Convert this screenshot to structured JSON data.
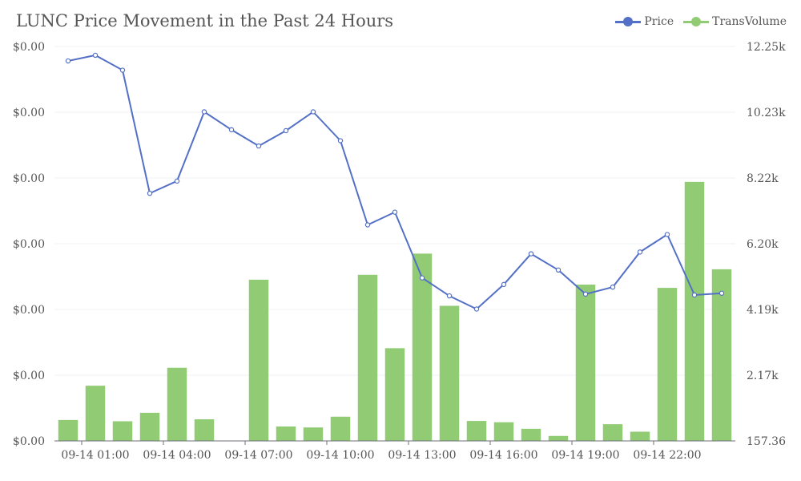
{
  "chart_data": {
    "type": "bar",
    "title": "LUNC Price Movement in the Past 24 Hours",
    "legend_position": "top-right",
    "grid": true,
    "x": [
      "09-14 00:00",
      "09-14 01:00",
      "09-14 02:00",
      "09-14 03:00",
      "09-14 04:00",
      "09-14 05:00",
      "09-14 06:00",
      "09-14 07:00",
      "09-14 08:00",
      "09-14 09:00",
      "09-14 10:00",
      "09-14 11:00",
      "09-14 12:00",
      "09-14 13:00",
      "09-14 14:00",
      "09-14 15:00",
      "09-14 16:00",
      "09-14 17:00",
      "09-14 18:00",
      "09-14 19:00",
      "09-14 20:00",
      "09-14 21:00",
      "09-14 22:00",
      "09-14 23:00",
      "09-15 00:00"
    ],
    "x_tick_labels": [
      "09-14 01:00",
      "09-14 04:00",
      "09-14 07:00",
      "09-14 10:00",
      "09-14 13:00",
      "09-14 16:00",
      "09-14 19:00",
      "09-14 22:00"
    ],
    "series": [
      {
        "name": "Price",
        "type": "line",
        "axis": "left",
        "color": "#5470c6",
        "values": [
          0.0001167,
          0.000118,
          0.0001146,
          8.65e-05,
          8.93e-05,
          0.0001051,
          0.000101,
          9.73e-05,
          0.0001008,
          0.0001051,
          9.85e-05,
          7.93e-05,
          8.22e-05,
          6.72e-05,
          6.31e-05,
          6.01e-05,
          6.57e-05,
          7.27e-05,
          6.9e-05,
          6.35e-05,
          6.51e-05,
          7.31e-05,
          7.71e-05,
          6.33e-05,
          6.37e-05
        ]
      },
      {
        "name": "TransVolume",
        "type": "bar",
        "axis": "right",
        "color": "#91cc75",
        "values": [
          800,
          1850,
          760,
          1020,
          2400,
          820,
          157.36,
          5100,
          600,
          570,
          900,
          5250,
          3000,
          5900,
          4300,
          770,
          730,
          530,
          310,
          4950,
          670,
          440,
          4850,
          8100,
          5420
        ]
      }
    ],
    "y_left": {
      "tick_labels": [
        "$0.00",
        "$0.00",
        "$0.00",
        "$0.00",
        "$0.00",
        "$0.00",
        "$0.00"
      ],
      "ylim": [
        3e-05,
        0.00012
      ]
    },
    "y_right": {
      "tick_labels": [
        "157.36",
        "2.17k",
        "4.19k",
        "6.20k",
        "8.22k",
        "10.23k",
        "12.25k"
      ],
      "ylim": [
        157.36,
        12250
      ]
    }
  }
}
